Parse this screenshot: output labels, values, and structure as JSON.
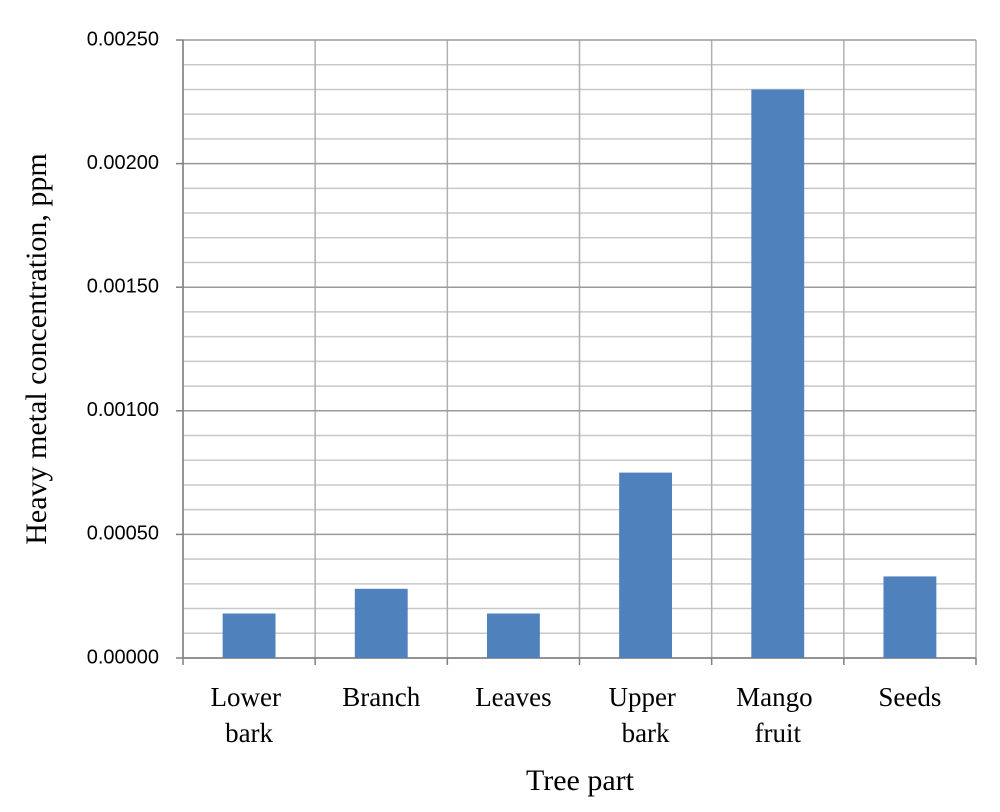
{
  "chart_data": {
    "type": "bar",
    "x_label": "Tree part",
    "y_label": "Heavy metal concentration, ppm",
    "categories": [
      "Lower bark",
      "Branch",
      "Leaves",
      "Upper bark",
      "Mango fruit",
      "Seeds"
    ],
    "values": [
      0.00018,
      0.00028,
      0.00018,
      0.00075,
      0.0023,
      0.00033
    ],
    "color": "#4f81bd",
    "ylim": [
      0,
      0.0025
    ],
    "yticks": [
      {
        "value": 0,
        "label": "0.00000"
      },
      {
        "value": 0.0005,
        "label": "0.00050"
      },
      {
        "value": 0.001,
        "label": "0.00100"
      },
      {
        "value": 0.0015,
        "label": "0.00150"
      },
      {
        "value": 0.002,
        "label": "0.00200"
      },
      {
        "value": 0.0025,
        "label": "0.00250"
      }
    ],
    "yminorticks": [
      0.0001,
      0.0002,
      0.0003,
      0.0004,
      0.0006,
      0.0007,
      0.0008,
      0.0009,
      0.0011,
      0.0012,
      0.0013,
      0.0014,
      0.0016,
      0.0017,
      0.0018,
      0.0019,
      0.0021,
      0.0022,
      0.0023,
      0.0024
    ],
    "grid": true
  }
}
